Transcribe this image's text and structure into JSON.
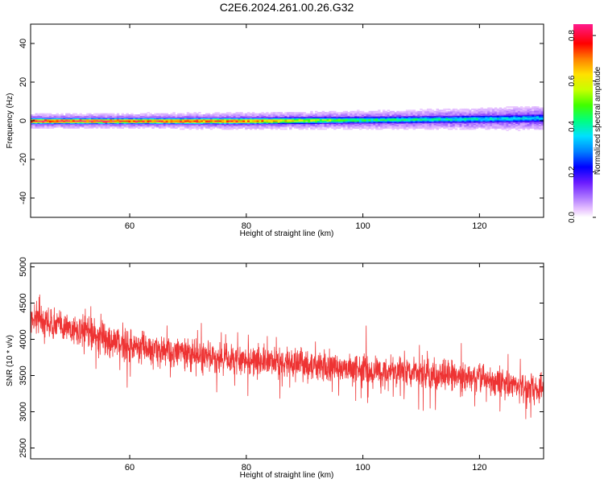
{
  "chart_data": [
    {
      "type": "heatmap",
      "title": "C2E6.2024.261.00.26.G32",
      "xlabel": "Height of straight line (km)",
      "ylabel": "Frequency (Hz)",
      "xlim": [
        43,
        131
      ],
      "ylim": [
        -50,
        50
      ],
      "xticks": [
        "60",
        "80",
        "100",
        "120"
      ],
      "yticks": [
        "40",
        "20",
        "0",
        "-20",
        "-40"
      ],
      "colorbar": {
        "label": "Normalized spectral amplitude",
        "range": [
          0.0,
          0.85
        ],
        "ticks": [
          "0.0",
          "0.2",
          "0.4",
          "0.6",
          "0.8"
        ]
      },
      "band": {
        "description_points": [
          {
            "x": 43,
            "center": 0,
            "halfwidth": 2.5,
            "peak": 0.82
          },
          {
            "x": 60,
            "center": 0,
            "halfwidth": 2.5,
            "peak": 0.78
          },
          {
            "x": 80,
            "center": 0,
            "halfwidth": 2.8,
            "peak": 0.72
          },
          {
            "x": 100,
            "center": 0.5,
            "halfwidth": 3.0,
            "peak": 0.45
          },
          {
            "x": 120,
            "center": 1.0,
            "halfwidth": 3.5,
            "peak": 0.38
          },
          {
            "x": 131,
            "center": 1.5,
            "halfwidth": 4.0,
            "peak": 0.35
          }
        ]
      },
      "grid": false
    },
    {
      "type": "line",
      "title": "",
      "xlabel": "Height of straight line (km)",
      "ylabel": "SNR (10 * v/v)",
      "xlim": [
        43,
        131
      ],
      "ylim": [
        2350,
        5050
      ],
      "xticks": [
        "60",
        "80",
        "100",
        "120"
      ],
      "yticks": [
        "5000",
        "4500",
        "4000",
        "3500",
        "3000",
        "2500"
      ],
      "series": [
        {
          "color": "#ee3333",
          "trend_x": [
            43,
            50,
            60,
            70,
            80,
            90,
            100,
            110,
            120,
            131
          ],
          "trend_y": [
            4300,
            4150,
            3900,
            3780,
            3700,
            3650,
            3580,
            3520,
            3450,
            3300
          ],
          "noise_amplitude": 300
        }
      ],
      "grid": false
    }
  ]
}
